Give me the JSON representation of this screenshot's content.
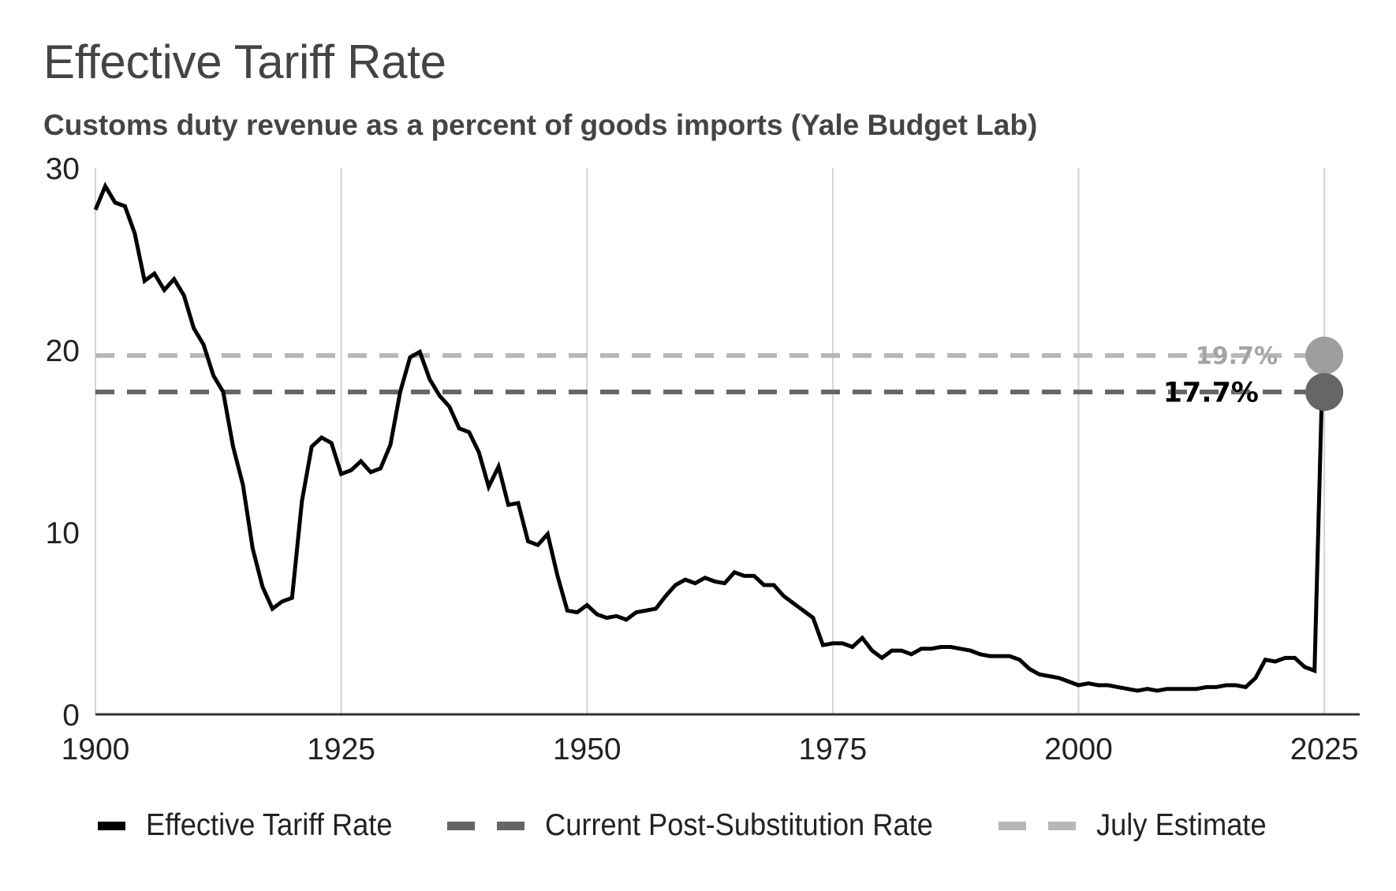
{
  "header": {
    "title": "Effective Tariff Rate",
    "subtitle": "Customs duty revenue as a percent of goods imports (Yale Budget Lab)"
  },
  "colors": {
    "effective_rate": "#000000",
    "current_post_substitution": "#666666",
    "july_estimate": "#b7b7b7",
    "july_dot": "#9e9e9e",
    "current_dot": "#666666",
    "july_label": "#a3a3a3",
    "current_label": "#000000",
    "gridline": "#d4d4d4",
    "axis": "#333333"
  },
  "legend": {
    "items": [
      {
        "label": "Effective Tariff Rate",
        "style": "solid",
        "color": "#000000"
      },
      {
        "label": "Current Post-Substitution Rate",
        "style": "dashed",
        "color": "#666666"
      },
      {
        "label": "July Estimate",
        "style": "dashed",
        "color": "#b7b7b7"
      }
    ]
  },
  "chart_data": {
    "type": "line",
    "title": "Effective Tariff Rate",
    "subtitle": "Customs duty revenue as a percent of goods imports (Yale Budget Lab)",
    "xlabel": "",
    "ylabel": "",
    "xlim": [
      1900,
      2028.6
    ],
    "ylim": [
      0,
      30
    ],
    "x_ticks": [
      1900,
      1925,
      1950,
      1975,
      2000,
      2025
    ],
    "x_tick_labels": [
      "1900",
      "1925",
      "1950",
      "1975",
      "2000",
      "2025"
    ],
    "y_ticks": [
      0,
      10,
      20,
      30
    ],
    "y_tick_labels": [
      "0",
      "10",
      "20",
      "30"
    ],
    "grid": "vertical",
    "legend_position": "bottom",
    "series": [
      {
        "name": "Effective Tariff Rate",
        "style": "solid",
        "x": [
          1900,
          1901,
          1902,
          1903,
          1904,
          1905,
          1906,
          1907,
          1908,
          1909,
          1910,
          1911,
          1912,
          1913,
          1914,
          1915,
          1916,
          1917,
          1918,
          1919,
          1920,
          1921,
          1922,
          1923,
          1924,
          1925,
          1926,
          1927,
          1928,
          1929,
          1930,
          1931,
          1932,
          1933,
          1934,
          1935,
          1936,
          1937,
          1938,
          1939,
          1940,
          1941,
          1942,
          1943,
          1944,
          1945,
          1946,
          1947,
          1948,
          1949,
          1950,
          1951,
          1952,
          1953,
          1954,
          1955,
          1956,
          1957,
          1958,
          1959,
          1960,
          1961,
          1962,
          1963,
          1964,
          1965,
          1966,
          1967,
          1968,
          1969,
          1970,
          1971,
          1972,
          1973,
          1974,
          1975,
          1976,
          1977,
          1978,
          1979,
          1980,
          1981,
          1982,
          1983,
          1984,
          1985,
          1986,
          1987,
          1988,
          1989,
          1990,
          1991,
          1992,
          1993,
          1994,
          1995,
          1996,
          1997,
          1998,
          1999,
          2000,
          2001,
          2002,
          2003,
          2004,
          2005,
          2006,
          2007,
          2008,
          2009,
          2010,
          2011,
          2012,
          2013,
          2014,
          2015,
          2016,
          2017,
          2018,
          2019,
          2020,
          2021,
          2022,
          2023,
          2024,
          2025
        ],
        "values": [
          27.7,
          29.0,
          28.1,
          27.9,
          26.4,
          23.8,
          24.2,
          23.3,
          23.9,
          23.0,
          21.2,
          20.3,
          18.6,
          17.7,
          14.7,
          12.6,
          9.1,
          7.0,
          5.8,
          6.2,
          6.4,
          11.7,
          14.7,
          15.2,
          14.9,
          13.2,
          13.4,
          13.9,
          13.3,
          13.5,
          14.8,
          17.7,
          19.6,
          19.9,
          18.4,
          17.5,
          16.9,
          15.7,
          15.5,
          14.4,
          12.5,
          13.6,
          11.5,
          11.6,
          9.5,
          9.3,
          9.9,
          7.6,
          5.7,
          5.6,
          6.0,
          5.5,
          5.3,
          5.4,
          5.2,
          5.6,
          5.7,
          5.8,
          6.5,
          7.1,
          7.4,
          7.2,
          7.5,
          7.3,
          7.2,
          7.8,
          7.6,
          7.6,
          7.1,
          7.1,
          6.5,
          6.1,
          5.7,
          5.3,
          3.8,
          3.9,
          3.9,
          3.7,
          4.2,
          3.5,
          3.1,
          3.5,
          3.5,
          3.3,
          3.6,
          3.6,
          3.7,
          3.7,
          3.6,
          3.5,
          3.3,
          3.2,
          3.2,
          3.2,
          3.0,
          2.5,
          2.2,
          2.1,
          2.0,
          1.8,
          1.6,
          1.7,
          1.6,
          1.6,
          1.5,
          1.4,
          1.3,
          1.4,
          1.3,
          1.4,
          1.4,
          1.4,
          1.4,
          1.5,
          1.5,
          1.6,
          1.6,
          1.5,
          2.0,
          3.0,
          2.9,
          3.1,
          3.1,
          2.6,
          2.4,
          17.7
        ]
      },
      {
        "name": "Current Post-Substitution Rate",
        "style": "dashed",
        "x": [
          1900,
          2025
        ],
        "values": [
          17.7,
          17.7
        ],
        "end_label": "17.7%"
      },
      {
        "name": "July Estimate",
        "style": "dashed",
        "x": [
          1900,
          2025
        ],
        "values": [
          19.7,
          19.7
        ],
        "end_label": "19.7%"
      }
    ],
    "annotations": [
      {
        "x": 2025,
        "y": 19.7,
        "text": "19.7%",
        "series": "July Estimate"
      },
      {
        "x": 2025,
        "y": 17.7,
        "text": "17.7%",
        "series": "Current Post-Substitution Rate"
      }
    ]
  }
}
